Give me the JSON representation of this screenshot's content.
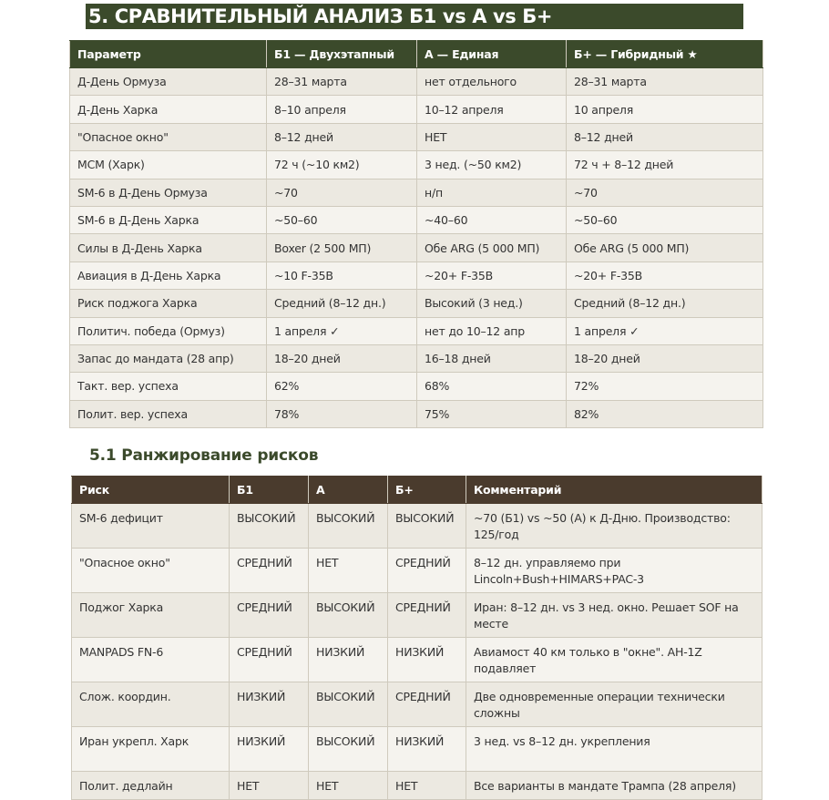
{
  "title": "5. СРАВНИТЕЛЬНЫЙ АНАЛИЗ Б1 vs А vs Б+",
  "colors": {
    "table1_header": "#3b4a2b",
    "table2_header": "#4a3b2d",
    "row_odd": "#ece9e1",
    "row_even": "#f5f3ee"
  },
  "comparison": {
    "headers": [
      "Параметр",
      "Б1 — Двухэтапный",
      "А — Единая",
      "Б+ — Гибридный ★"
    ],
    "rows": [
      [
        "Д-День Ормуза",
        "28–31 марта",
        "нет отдельного",
        "28–31 марта"
      ],
      [
        "Д-День Харка",
        "8–10 апреля",
        "10–12 апреля",
        "10 апреля"
      ],
      [
        "\"Опасное окно\"",
        "8–12 дней",
        "НЕТ",
        "8–12 дней"
      ],
      [
        "MCM (Харк)",
        "72 ч (~10 км2)",
        "3 нед. (~50 км2)",
        "72 ч + 8–12 дней"
      ],
      [
        "SM-6 в Д-День Ормуза",
        "~70",
        "н/п",
        "~70"
      ],
      [
        "SM-6 в Д-День Харка",
        "~50–60",
        "~40–60",
        "~50–60"
      ],
      [
        "Силы в Д-День Харка",
        "Boxer (2 500 МП)",
        "Обе ARG (5 000 МП)",
        "Обе ARG (5 000 МП)"
      ],
      [
        "Авиация в Д-День Харка",
        "~10 F-35B",
        "~20+ F-35B",
        "~20+ F-35B"
      ],
      [
        "Риск поджога Харка",
        "Средний (8–12 дн.)",
        "Высокий (3 нед.)",
        "Средний (8–12 дн.)"
      ],
      [
        "Политич. победа (Ормуз)",
        "1 апреля ✓",
        "нет до 10–12 апр",
        "1 апреля ✓"
      ],
      [
        "Запас до мандата (28 апр)",
        "18–20 дней",
        "16–18 дней",
        "18–20 дней"
      ],
      [
        "Такт. вер. успеха",
        "62%",
        "68%",
        "72%"
      ],
      [
        "Полит. вер. успеха",
        "78%",
        "75%",
        "82%"
      ]
    ]
  },
  "risks": {
    "subtitle": "5.1 Ранжирование рисков",
    "headers": [
      "Риск",
      "Б1",
      "А",
      "Б+",
      "Комментарий"
    ],
    "rows": [
      [
        "SM-6 дефицит",
        "ВЫСОКИЙ",
        "ВЫСОКИЙ",
        "ВЫСОКИЙ",
        "~70 (Б1) vs ~50 (А) к Д-Дню. Производство: 125/год"
      ],
      [
        "\"Опасное окно\"",
        "СРЕДНИЙ",
        "НЕТ",
        "СРЕДНИЙ",
        "8–12 дн. управляемо при Lincoln+Bush+HIMARS+PAC-3"
      ],
      [
        "Поджог Харка",
        "СРЕДНИЙ",
        "ВЫСОКИЙ",
        "СРЕДНИЙ",
        "Иран: 8–12 дн. vs 3 нед. окно. Решает SOF на месте"
      ],
      [
        "MANPADS FN-6",
        "СРЕДНИЙ",
        "НИЗКИЙ",
        "НИЗКИЙ",
        "Авиамост 40 км только в \"окне\". AH-1Z подавляет"
      ],
      [
        "Слож. координ.",
        "НИЗКИЙ",
        "ВЫСОКИЙ",
        "СРЕДНИЙ",
        "Две одновременные операции технически сложны"
      ],
      [
        "Иран укрепл. Харк",
        "НИЗКИЙ",
        "ВЫСОКИЙ",
        "НИЗКИЙ",
        "3 нед. vs 8–12 дн. укрепления"
      ],
      [
        "Полит. дедлайн",
        "НЕТ",
        "НЕТ",
        "НЕТ",
        "Все варианты в мандате Трампа (28 апреля)"
      ]
    ]
  }
}
